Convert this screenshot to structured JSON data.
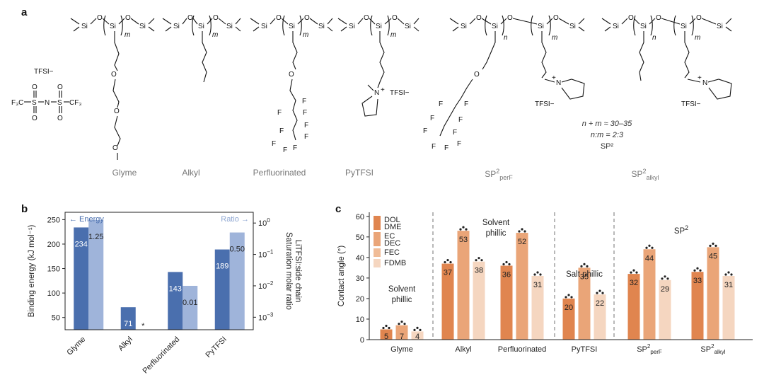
{
  "panel_a": {
    "letter": "a",
    "structure_labels": [
      {
        "id": "glyme",
        "text": "Glyme"
      },
      {
        "id": "alkyl",
        "text": "Alkyl"
      },
      {
        "id": "perfluorinated",
        "text": "Perfluorinated"
      },
      {
        "id": "pytfsi",
        "text": "PyTFSI"
      },
      {
        "id": "sp2perf",
        "text": "SP",
        "sup": "2",
        "sub": "perF"
      },
      {
        "id": "sp2alkyl",
        "text": "SP",
        "sup": "2",
        "sub": "alkyl"
      }
    ],
    "anion_label": "TFSI−",
    "counter_ion": "TFSI−",
    "repeat_m": "m",
    "repeat_n": "n",
    "atoms": {
      "si": "Si",
      "o": "O",
      "n": "N",
      "f": "F",
      "s": "S",
      "cf3": "CF₃",
      "f3c": "F₃C"
    },
    "sp2_notes": {
      "line1": "n + m ≈ 30–35",
      "line2": "n:m = 2:3",
      "line3": "SP²"
    }
  },
  "chart_data": [
    {
      "panel": "b",
      "type": "bar",
      "categories": [
        "Glyme",
        "Alkyl",
        "Perfluorinated",
        "PyTFSI"
      ],
      "series": [
        {
          "name": "Energy",
          "axis": "left",
          "color": "#4a6fae",
          "values": [
            234,
            71,
            143,
            189
          ],
          "labels": [
            "234",
            "71",
            "143",
            "189"
          ]
        },
        {
          "name": "Ratio",
          "axis": "right",
          "color": "#9fb4da",
          "values": [
            1.25,
            null,
            0.01,
            0.5
          ],
          "labels": [
            "1.25",
            "*",
            "0.01",
            "0.50"
          ]
        }
      ],
      "ylabel": "Binding energy (kJ mol⁻¹)",
      "ylim": [
        25,
        265
      ],
      "yticks": [
        50,
        100,
        150,
        200,
        250
      ],
      "y2label_line1": "Saturation molar ratio",
      "y2label_line2": "LiTFSI:side chain",
      "y2scale": "log",
      "y2ticks": [
        {
          "value": 1,
          "base": "10",
          "exp": "0"
        },
        {
          "value": 0.1,
          "base": "10",
          "exp": "−1"
        },
        {
          "value": 0.01,
          "base": "10",
          "exp": "−2"
        },
        {
          "value": 0.001,
          "base": "10",
          "exp": "−3"
        }
      ],
      "legend": {
        "energy": "← Energy",
        "ratio": "Ratio →"
      }
    },
    {
      "panel": "c",
      "type": "bar",
      "ylabel": "Contact angle (°)",
      "ylim": [
        0,
        62
      ],
      "yticks": [
        0,
        10,
        20,
        30,
        40,
        50,
        60
      ],
      "legend": [
        {
          "lines": [
            "DOL",
            "DME"
          ],
          "color": "#e0854f"
        },
        {
          "lines": [
            "EC",
            "DEC"
          ],
          "color": "#eaa578"
        },
        {
          "lines": [
            "FEC"
          ],
          "color": "#f0bc97"
        },
        {
          "lines": [
            "FDMB"
          ],
          "color": "#f5d6c0"
        }
      ],
      "groups": [
        {
          "name": "Glyme",
          "values": [
            5,
            7,
            4
          ]
        },
        {
          "name": "Alkyl",
          "values": [
            37,
            53,
            38
          ]
        },
        {
          "name": "Perfluorinated",
          "values": [
            36,
            52,
            31
          ]
        },
        {
          "name": "PyTFSI",
          "values": [
            20,
            35,
            22
          ]
        },
        {
          "name": "SP",
          "sup": "2",
          "sub": "perF",
          "values": [
            32,
            44,
            29
          ]
        },
        {
          "name": "SP",
          "sup": "2",
          "sub": "alkyl",
          "values": [
            33,
            45,
            31
          ]
        }
      ],
      "bar_colors": [
        "#e0854f",
        "#eaa578",
        "#f5d6c0"
      ],
      "annotations": [
        {
          "id": "glyme-note",
          "lines": [
            "Solvent",
            "phillic"
          ]
        },
        {
          "id": "alkyl-note",
          "lines": [
            "Solvent",
            "phillic"
          ]
        },
        {
          "id": "pytfsi-note",
          "lines": [
            "Salt phillic"
          ]
        },
        {
          "id": "sp2-note",
          "text": "SP",
          "sup": "2"
        }
      ]
    }
  ],
  "panel_b_letter": "b",
  "panel_c_letter": "c"
}
